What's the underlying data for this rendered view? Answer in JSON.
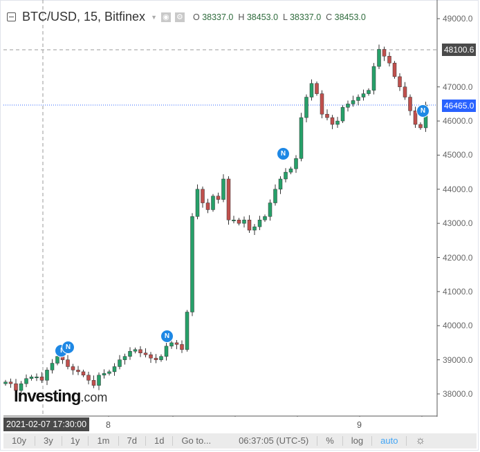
{
  "header": {
    "title": "BTC/USD, 15, Bitfinex",
    "o_label": "O",
    "o": "38337.0",
    "h_label": "H",
    "h": "38453.0",
    "l_label": "L",
    "l": "38337.0",
    "c_label": "C",
    "c": "38453.0"
  },
  "price_axis": {
    "labels": [
      "49000.0",
      "47000.0",
      "46000.0",
      "45000.0",
      "44000.0",
      "43000.0",
      "42000.0",
      "41000.0",
      "40000.0",
      "39000.0",
      "38000.0"
    ],
    "crosshair_price": "48100.6",
    "last_price": "46465.0"
  },
  "time_axis": {
    "crosshair_time": "2021-02-07 17:30:00",
    "labels": [
      "8",
      "9"
    ]
  },
  "toolbar": {
    "ranges": [
      "10y",
      "3y",
      "1y",
      "1m",
      "7d",
      "1d"
    ],
    "goto": "Go to...",
    "clock": "06:37:05 (UTC-5)",
    "percent": "%",
    "log": "log",
    "auto": "auto"
  },
  "news": [
    "I",
    "N",
    "N",
    "N",
    "N"
  ],
  "logo": {
    "main": "Investing",
    ".com": ".com"
  },
  "colors": {
    "up": "#26a069",
    "down": "#c0504d",
    "last_price": "#2962ff",
    "auto": "#42a5f5"
  },
  "chart_data": {
    "type": "candlestick",
    "ylim": [
      37600,
      49400
    ],
    "series_closes": [
      38350,
      38300,
      38100,
      38300,
      38450,
      38500,
      38500,
      38400,
      38700,
      38900,
      39100,
      39000,
      38800,
      38700,
      38650,
      38550,
      38400,
      38250,
      38550,
      38600,
      38650,
      38800,
      39000,
      39100,
      39250,
      39300,
      39200,
      39150,
      39050,
      39000,
      39100,
      39400,
      39500,
      39450,
      39300,
      40400,
      43200,
      44000,
      43600,
      43400,
      43800,
      43700,
      44300,
      43100,
      43100,
      43000,
      43100,
      42800,
      42900,
      43100,
      43200,
      43600,
      44000,
      44300,
      44500,
      44600,
      44900,
      46100,
      46700,
      47100,
      46800,
      46200,
      46100,
      45900,
      46000,
      46400,
      46500,
      46600,
      46700,
      46800,
      46900,
      47600,
      48100,
      47900,
      47700,
      47300,
      47000,
      46700,
      46300,
      45900,
      45800,
      46465
    ]
  }
}
